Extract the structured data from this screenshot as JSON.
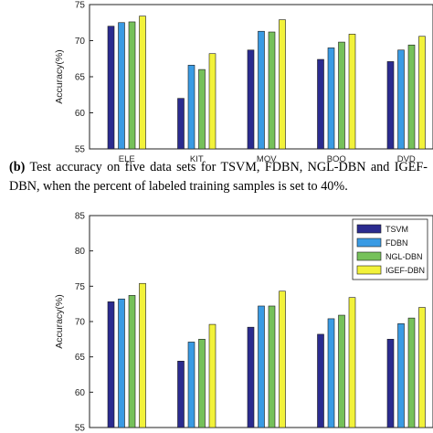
{
  "caption": {
    "label": "(b)",
    "text": " Test accuracy on five data sets for TSVM, FDBN, NGL-DBN and IGEF-DBN, when the percent of labeled training samples is set to 40%."
  },
  "colors": {
    "TSVM": "#2b2b8f",
    "FDBN": "#3a9be4",
    "NGL-DBN": "#76c15a",
    "IGEF-DBN": "#f2f23a"
  },
  "chart_data": [
    {
      "type": "bar",
      "ylabel": "Accuracy(%)",
      "ylim": [
        55,
        75
      ],
      "yticks": [
        "55",
        "60",
        "65",
        "70",
        "75"
      ],
      "categories": [
        "ELE",
        "KIT",
        "MOV",
        "BOO",
        "DVD"
      ],
      "series": [
        {
          "values": [
            72.0,
            62.0,
            68.7,
            67.4,
            67.1
          ]
        },
        {
          "values": [
            72.5,
            66.6,
            71.3,
            69.0,
            68.7
          ]
        },
        {
          "values": [
            72.6,
            66.0,
            71.2,
            69.8,
            69.4
          ]
        },
        {
          "values": [
            73.4,
            68.2,
            72.9,
            70.9,
            70.6
          ]
        }
      ]
    },
    {
      "type": "bar",
      "ylabel": "Accuracy(%)",
      "ylim": [
        55,
        85
      ],
      "yticks": [
        "55",
        "60",
        "65",
        "70",
        "75",
        "80",
        "85"
      ],
      "legend_position": "top-right",
      "series": [
        {
          "name": "TSVM",
          "values": [
            72.8,
            64.4,
            69.2,
            68.2,
            67.5
          ]
        },
        {
          "name": "FDBN",
          "values": [
            73.2,
            67.1,
            72.2,
            70.4,
            69.7
          ]
        },
        {
          "name": "NGL-DBN",
          "values": [
            73.7,
            67.5,
            72.2,
            70.9,
            70.5
          ]
        },
        {
          "name": "IGEF-DBN",
          "values": [
            75.4,
            69.6,
            74.3,
            73.4,
            72.0
          ]
        }
      ]
    }
  ]
}
